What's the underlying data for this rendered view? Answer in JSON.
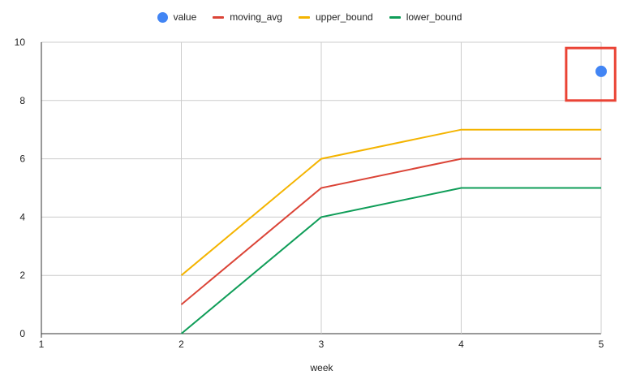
{
  "chart_data": {
    "type": "line",
    "xlabel": "week",
    "ylabel": "",
    "x": [
      1,
      2,
      3,
      4,
      5
    ],
    "xlim": [
      1,
      5
    ],
    "ylim": [
      0,
      10
    ],
    "yticks": [
      0,
      2,
      4,
      6,
      8,
      10
    ],
    "xticks": [
      1,
      2,
      3,
      4,
      5
    ],
    "grid": true,
    "legend_placement": "top-center",
    "series": [
      {
        "name": "value",
        "kind": "scatter",
        "color": "#4285f4",
        "points": [
          [
            5,
            9
          ]
        ]
      },
      {
        "name": "moving_avg",
        "kind": "line",
        "color": "#db4437",
        "points": [
          [
            2,
            1
          ],
          [
            3,
            5
          ],
          [
            4,
            6
          ],
          [
            5,
            6
          ]
        ]
      },
      {
        "name": "upper_bound",
        "kind": "line",
        "color": "#f4b400",
        "points": [
          [
            2,
            2
          ],
          [
            3,
            6
          ],
          [
            4,
            7
          ],
          [
            5,
            7
          ]
        ]
      },
      {
        "name": "lower_bound",
        "kind": "line",
        "color": "#0f9d58",
        "points": [
          [
            2,
            0
          ],
          [
            3,
            4
          ],
          [
            4,
            5
          ],
          [
            5,
            5
          ]
        ]
      }
    ],
    "annotation": {
      "type": "highlight-box",
      "color": "#ea4335",
      "x_range": [
        4.75,
        5.1
      ],
      "y_range": [
        8,
        9.8
      ]
    }
  }
}
